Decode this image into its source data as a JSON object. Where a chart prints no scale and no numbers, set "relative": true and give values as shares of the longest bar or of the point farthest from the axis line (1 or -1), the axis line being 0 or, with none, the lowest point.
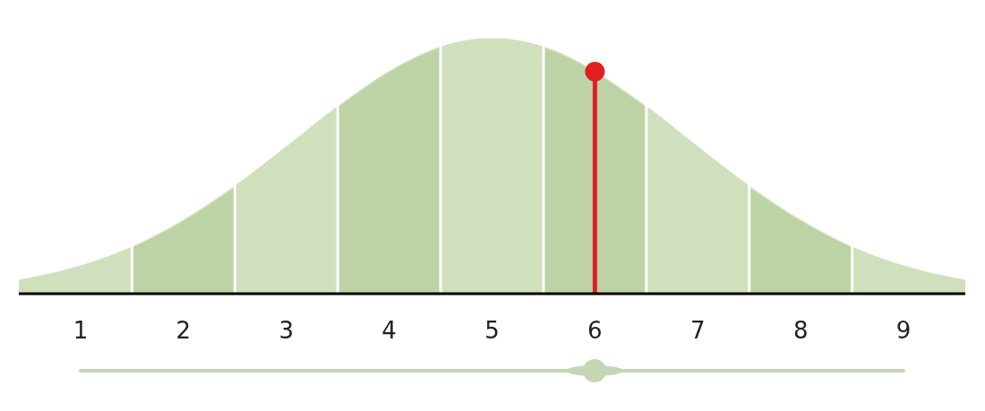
{
  "chart_data": {
    "type": "area",
    "relative": true,
    "x": [
      0.4,
      0.5,
      1,
      1.5,
      2,
      2.5,
      3,
      3.5,
      4,
      4.5,
      5,
      5.5,
      6,
      6.5,
      7,
      7.5,
      8,
      8.5,
      9,
      9.5,
      9.6
    ],
    "series": [
      {
        "color": "#d0e0bc",
        "values": [
          0.053,
          0.06,
          0.108,
          0.182,
          0.287,
          0.42,
          0.574,
          0.732,
          0.87,
          0.966,
          1,
          0.966,
          null,
          0.732,
          0.574,
          0.42,
          0.287,
          0.182,
          0.108,
          0.06,
          0.053
        ]
      },
      {
        "type": "lollipop",
        "x": [
          6
        ],
        "color": "#e02020",
        "values": [
          0.87
        ]
      }
    ],
    "xlim": [
      0.4,
      9.6
    ],
    "xticks": [
      1,
      2,
      3,
      4,
      5,
      6,
      7,
      8,
      9
    ],
    "bands": [
      {
        "axis": "x",
        "from": 1.5,
        "to": 2.5,
        "color": "#bdd3a5"
      },
      {
        "axis": "x",
        "from": 3.5,
        "to": 4.5,
        "color": "#bdd3a5"
      },
      {
        "axis": "x",
        "from": 5.5,
        "to": 6.5,
        "color": "#bdd3a5"
      },
      {
        "axis": "x",
        "from": 7.5,
        "to": 8.5,
        "color": "#bdd3a5"
      }
    ]
  }
}
